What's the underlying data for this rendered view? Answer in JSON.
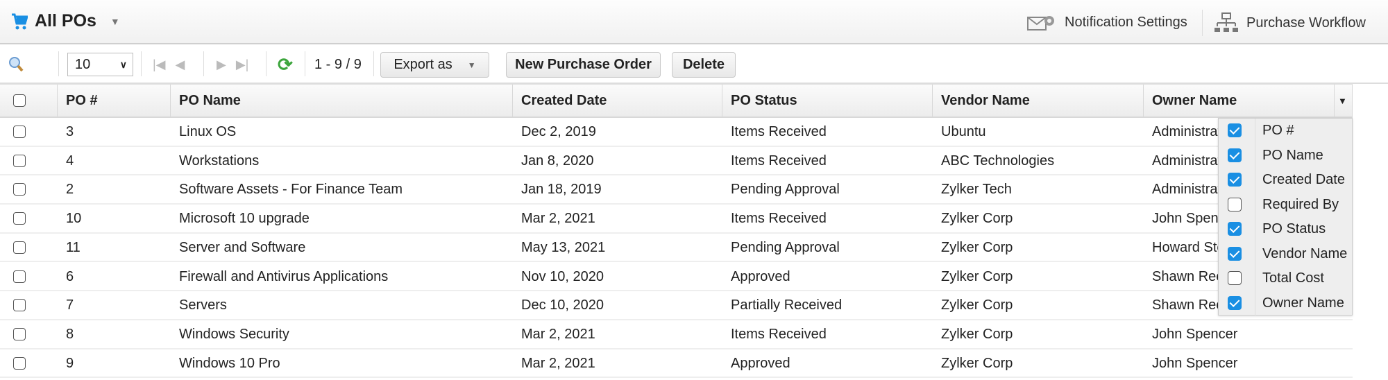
{
  "header": {
    "title": "All POs",
    "icon": "cart-icon",
    "notification_settings": "Notification Settings",
    "purchase_workflow": "Purchase Workflow"
  },
  "toolbar": {
    "page_size": "10",
    "range": "1 - 9 / 9",
    "export_label": "Export as",
    "new_po_label": "New Purchase Order",
    "delete_label": "Delete"
  },
  "table": {
    "columns": [
      "PO #",
      "PO Name",
      "Created Date",
      "PO Status",
      "Vendor Name",
      "Owner Name"
    ],
    "rows": [
      [
        "3",
        "Linux OS",
        "Dec 2, 2019",
        "Items Received",
        "Ubuntu",
        "Administrator"
      ],
      [
        "4",
        "Workstations",
        "Jan 8, 2020",
        "Items Received",
        "ABC Technologies",
        "Administrator"
      ],
      [
        "2",
        "Software Assets - For Finance Team",
        "Jan 18, 2019",
        "Pending Approval",
        "Zylker Tech",
        "Administrator"
      ],
      [
        "10",
        "Microsoft 10 upgrade",
        "Mar 2, 2021",
        "Items Received",
        "Zylker Corp",
        "John Spencer"
      ],
      [
        "11",
        "Server and Software",
        "May 13, 2021",
        "Pending Approval",
        "Zylker Corp",
        "Howard Stern"
      ],
      [
        "6",
        "Firewall and Antivirus Applications",
        "Nov 10, 2020",
        "Approved",
        "Zylker Corp",
        "Shawn Reed"
      ],
      [
        "7",
        "Servers",
        "Dec 10, 2020",
        "Partially Received",
        "Zylker Corp",
        "Shawn Reed"
      ],
      [
        "8",
        "Windows Security",
        "Mar 2, 2021",
        "Items Received",
        "Zylker Corp",
        "John Spencer"
      ],
      [
        "9",
        "Windows 10 Pro",
        "Mar 2, 2021",
        "Approved",
        "Zylker Corp",
        "John Spencer"
      ]
    ]
  },
  "column_menu": [
    {
      "label": "PO #",
      "checked": true
    },
    {
      "label": "PO Name",
      "checked": true
    },
    {
      "label": "Created Date",
      "checked": true
    },
    {
      "label": "Required By",
      "checked": false
    },
    {
      "label": "PO Status",
      "checked": true
    },
    {
      "label": "Vendor Name",
      "checked": true
    },
    {
      "label": "Total Cost",
      "checked": false
    },
    {
      "label": "Owner Name",
      "checked": true
    }
  ],
  "colors": {
    "accent": "#1a8fe3",
    "refresh": "#3ca53c"
  }
}
